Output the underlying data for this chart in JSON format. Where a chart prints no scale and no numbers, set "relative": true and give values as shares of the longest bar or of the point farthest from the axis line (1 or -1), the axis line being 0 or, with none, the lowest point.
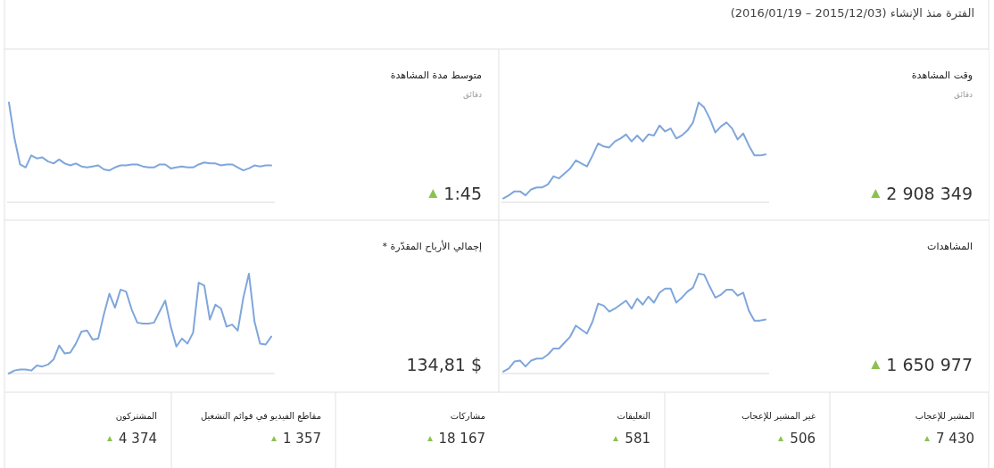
{
  "chart_data": [
    {
      "type": "other",
      "title": "الفترة منذ الإنشاء (2015/12/03 – 2016/01/19)"
    },
    {
      "type": "line",
      "annotations": [
        "وقت المشاهدة",
        "دقائق",
        "2 908 349"
      ],
      "relative": true,
      "color": "#7fa6dc",
      "categories": [
        null,
        null,
        null,
        null,
        null,
        null,
        null,
        null,
        null,
        null,
        null,
        null,
        null,
        null,
        null,
        null,
        null,
        null,
        null,
        null,
        null,
        null,
        null,
        null,
        null,
        null,
        null,
        null,
        null,
        null,
        null,
        null,
        null,
        null,
        null,
        null,
        null,
        null,
        null,
        null,
        null,
        null,
        null,
        null,
        null,
        null,
        null,
        null
      ],
      "values": [
        0.04,
        0.07,
        0.11,
        0.11,
        0.07,
        0.13,
        0.15,
        0.15,
        0.18,
        0.26,
        0.24,
        0.29,
        0.34,
        0.42,
        0.39,
        0.36,
        0.47,
        0.59,
        0.56,
        0.55,
        0.61,
        0.64,
        0.68,
        0.61,
        0.67,
        0.61,
        0.68,
        0.67,
        0.77,
        0.71,
        0.74,
        0.64,
        0.67,
        0.72,
        0.8,
        1.0,
        0.95,
        0.84,
        0.7,
        0.76,
        0.8,
        0.74,
        0.63,
        0.69,
        0.57,
        0.47,
        0.47,
        0.48
      ]
    },
    {
      "type": "line",
      "annotations": [
        "متوسط مدة المشاهدة",
        "دقائق",
        "1:45"
      ],
      "relative": true,
      "color": "#7fa6dc",
      "categories": [
        null,
        null,
        null,
        null,
        null,
        null,
        null,
        null,
        null,
        null,
        null,
        null,
        null,
        null,
        null,
        null,
        null,
        null,
        null,
        null,
        null,
        null,
        null,
        null,
        null,
        null,
        null,
        null,
        null,
        null,
        null,
        null,
        null,
        null,
        null,
        null,
        null,
        null,
        null,
        null,
        null,
        null,
        null,
        null,
        null,
        null,
        null,
        null
      ],
      "values": [
        1.0,
        0.64,
        0.38,
        0.35,
        0.47,
        0.44,
        0.45,
        0.41,
        0.39,
        0.43,
        0.39,
        0.37,
        0.39,
        0.36,
        0.35,
        0.36,
        0.37,
        0.33,
        0.32,
        0.35,
        0.37,
        0.37,
        0.38,
        0.38,
        0.36,
        0.35,
        0.35,
        0.38,
        0.38,
        0.34,
        0.35,
        0.36,
        0.35,
        0.35,
        0.38,
        0.4,
        0.39,
        0.39,
        0.37,
        0.38,
        0.38,
        0.35,
        0.32,
        0.34,
        0.37,
        0.36,
        0.37,
        0.37
      ]
    },
    {
      "type": "line",
      "annotations": [
        "المشاهدات",
        "1 650 977"
      ],
      "relative": true,
      "color": "#7fa6dc",
      "categories": [
        null,
        null,
        null,
        null,
        null,
        null,
        null,
        null,
        null,
        null,
        null,
        null,
        null,
        null,
        null,
        null,
        null,
        null,
        null,
        null,
        null,
        null,
        null,
        null,
        null,
        null,
        null,
        null,
        null,
        null,
        null,
        null,
        null,
        null,
        null,
        null,
        null,
        null,
        null,
        null,
        null,
        null,
        null,
        null,
        null,
        null,
        null,
        null
      ],
      "values": [
        0.02,
        0.05,
        0.12,
        0.13,
        0.07,
        0.13,
        0.15,
        0.15,
        0.19,
        0.25,
        0.25,
        0.31,
        0.37,
        0.48,
        0.44,
        0.4,
        0.52,
        0.7,
        0.68,
        0.62,
        0.65,
        0.69,
        0.73,
        0.65,
        0.75,
        0.69,
        0.77,
        0.71,
        0.81,
        0.85,
        0.85,
        0.71,
        0.76,
        0.82,
        0.86,
        1.0,
        0.99,
        0.87,
        0.76,
        0.79,
        0.84,
        0.84,
        0.78,
        0.81,
        0.63,
        0.53,
        0.53,
        0.54
      ]
    },
    {
      "type": "line",
      "annotations": [
        "إجمالي الأرباح المقدّرة *",
        "134,81 $"
      ],
      "relative": true,
      "color": "#7fa6dc",
      "categories": [
        null,
        null,
        null,
        null,
        null,
        null,
        null,
        null,
        null,
        null,
        null,
        null,
        null,
        null,
        null,
        null,
        null,
        null,
        null,
        null,
        null,
        null,
        null,
        null,
        null,
        null,
        null,
        null,
        null,
        null,
        null,
        null,
        null,
        null,
        null,
        null,
        null,
        null,
        null,
        null,
        null,
        null,
        null,
        null,
        null,
        null,
        null,
        null
      ],
      "values": [
        0.0,
        0.03,
        0.04,
        0.04,
        0.03,
        0.08,
        0.07,
        0.09,
        0.14,
        0.28,
        0.2,
        0.21,
        0.3,
        0.42,
        0.43,
        0.34,
        0.35,
        0.59,
        0.8,
        0.66,
        0.84,
        0.82,
        0.64,
        0.51,
        0.5,
        0.5,
        0.51,
        0.62,
        0.73,
        0.47,
        0.27,
        0.35,
        0.3,
        0.41,
        0.91,
        0.88,
        0.54,
        0.69,
        0.65,
        0.47,
        0.49,
        0.43,
        0.76,
        1.0,
        0.52,
        0.3,
        0.29,
        0.37
      ]
    },
    {
      "type": "other",
      "title": "المشير للإعجاب",
      "annotations": [
        "7 430"
      ]
    },
    {
      "type": "other",
      "title": "غير المشير للإعجاب",
      "annotations": [
        "506"
      ]
    },
    {
      "type": "other",
      "title": "التعليقات",
      "annotations": [
        "581"
      ]
    },
    {
      "type": "other",
      "title": "مشاركات",
      "annotations": [
        "18 167"
      ]
    },
    {
      "type": "other",
      "title": "مقاطع الفيديو في قوائم التشغيل",
      "annotations": [
        "1 357"
      ]
    },
    {
      "type": "other",
      "title": "المشتركون",
      "annotations": [
        "4 374"
      ]
    }
  ]
}
